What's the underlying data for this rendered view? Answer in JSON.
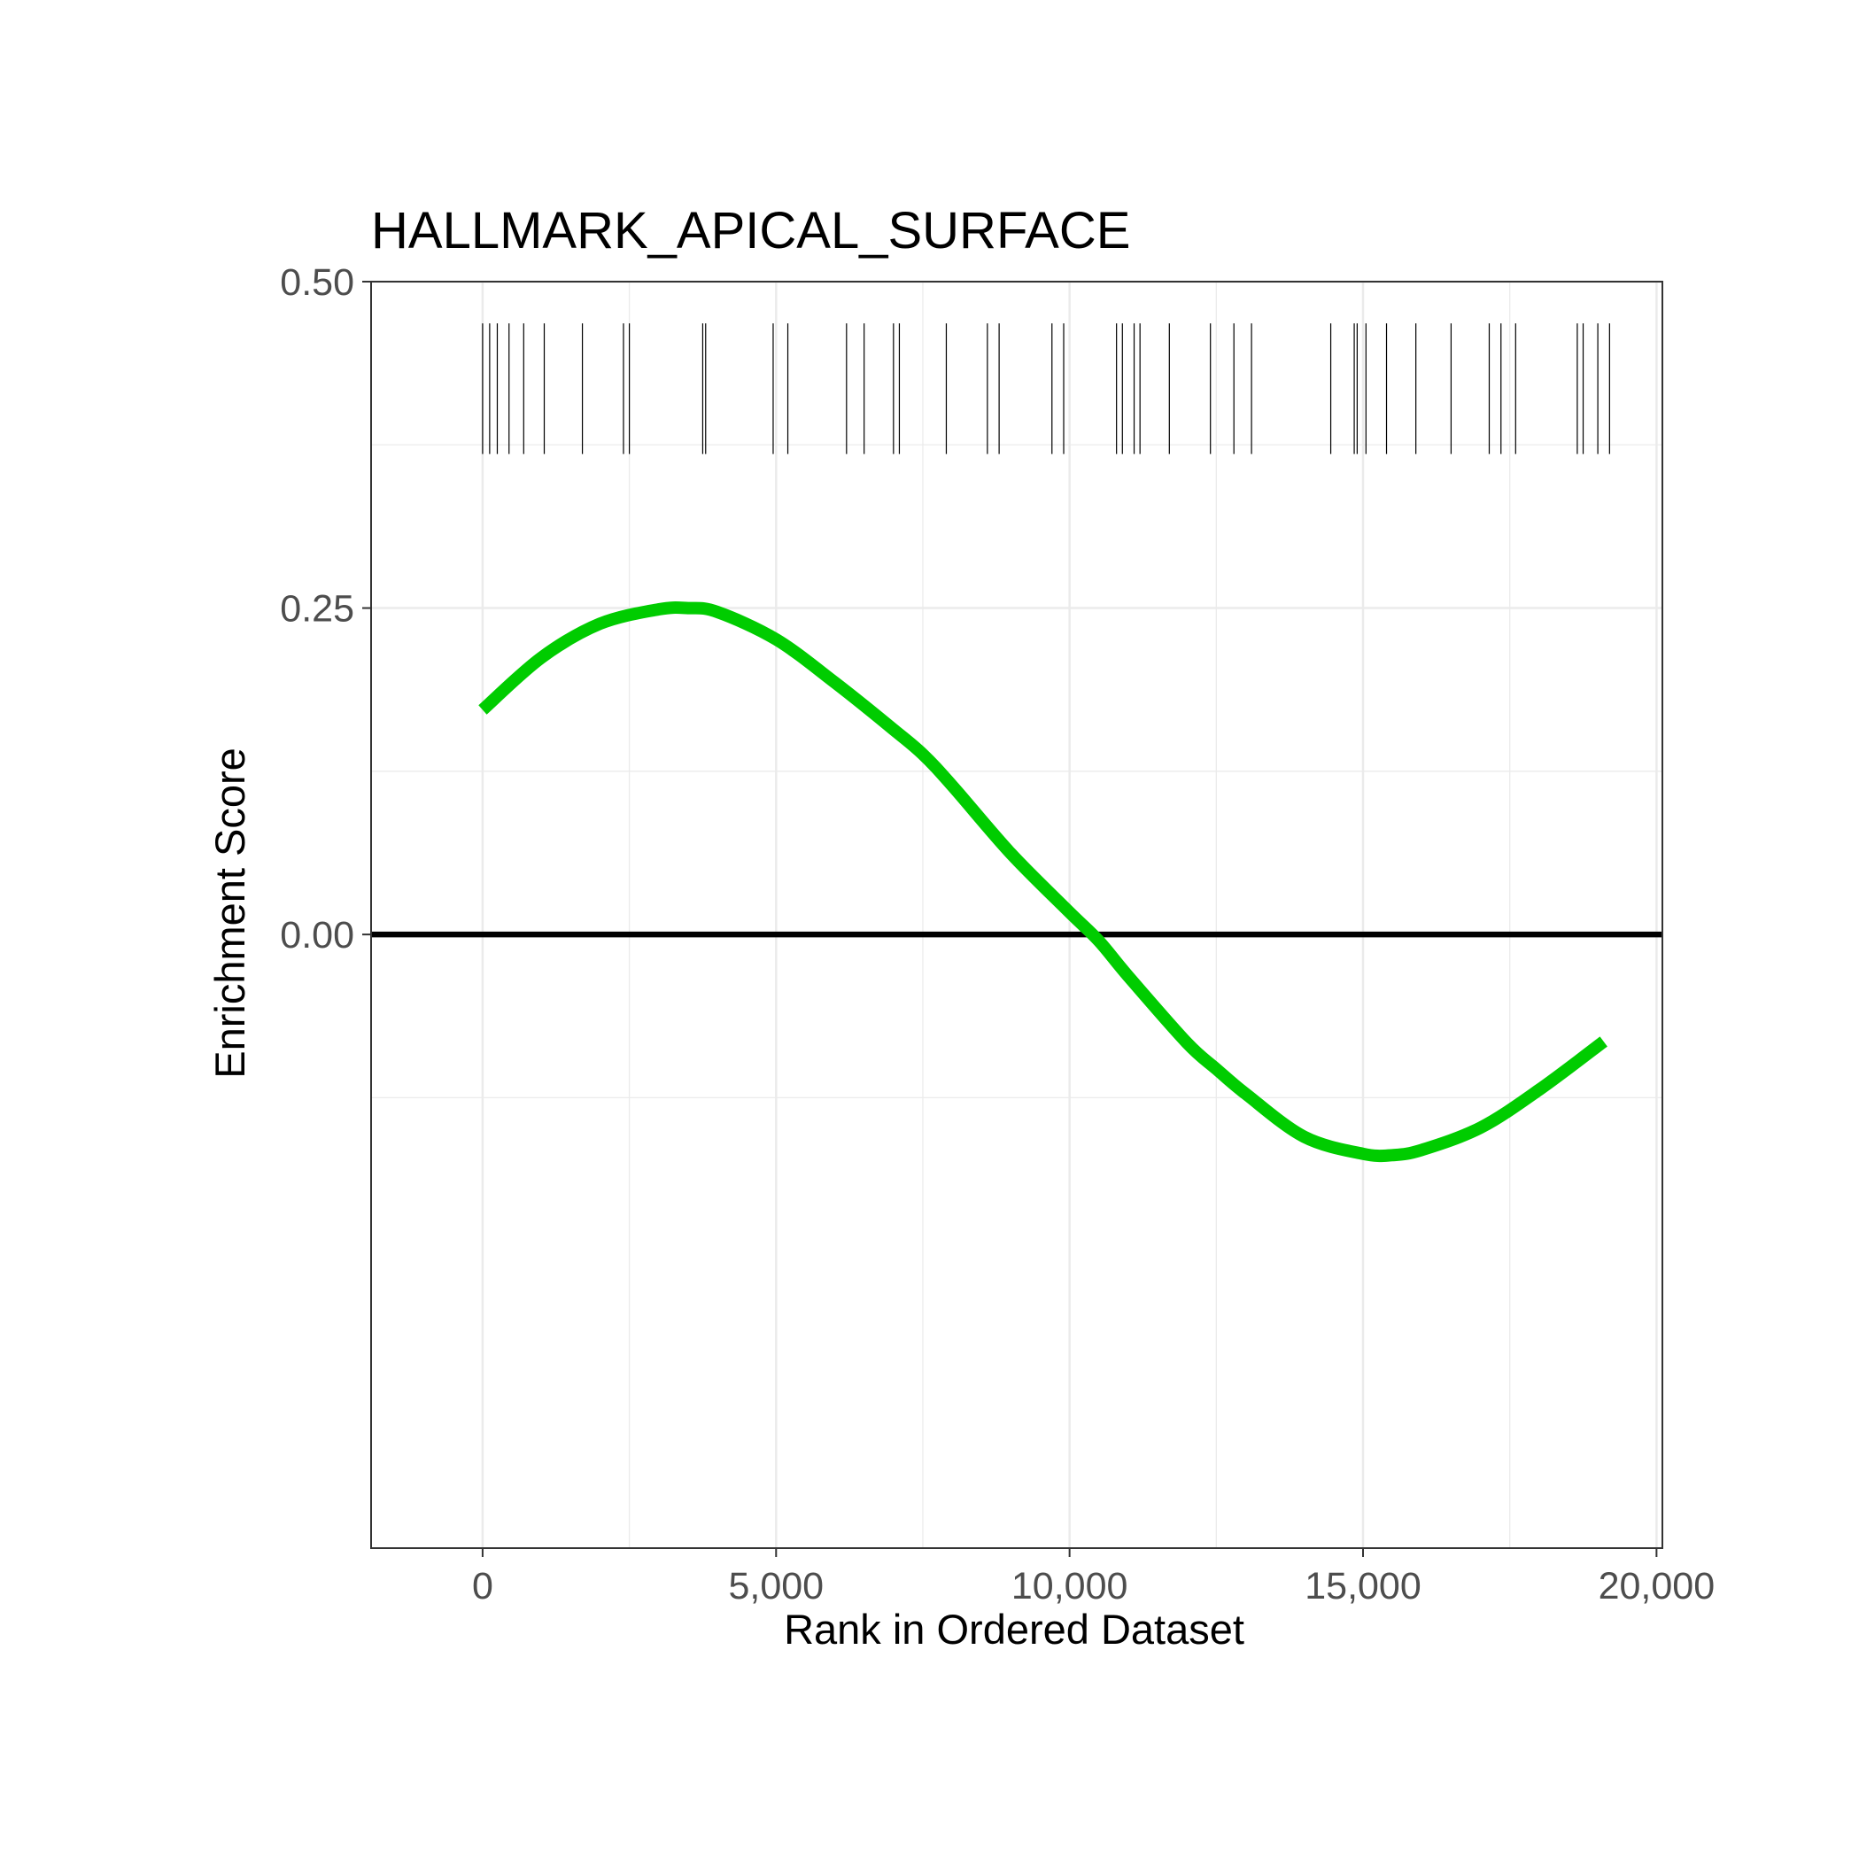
{
  "chart_data": {
    "type": "line",
    "title": "HALLMARK_APICAL_SURFACE",
    "xlabel": "Rank in Ordered Dataset",
    "ylabel": "Enrichment Score",
    "xlim": [
      -1900,
      20100
    ],
    "ylim": [
      -0.47,
      0.5
    ],
    "x_ticks": [
      0,
      5000,
      10000,
      15000,
      20000
    ],
    "x_tick_labels": [
      "0",
      "5,000",
      "10,000",
      "15,000",
      "20,000"
    ],
    "y_ticks": [
      0.0,
      0.25,
      0.5
    ],
    "y_tick_labels": [
      "0.00",
      "0.25",
      "0.50"
    ],
    "grid": true,
    "legend": "none",
    "line_color": "#00cc00",
    "zero_line_color": "#000000",
    "series": [
      {
        "x": [
          0,
          1000,
          2000,
          3000,
          3500,
          4000,
          5000,
          6000,
          7000,
          7500,
          8000,
          9000,
          10000,
          10500,
          11000,
          12000,
          12500,
          13000,
          14000,
          15000,
          15500,
          16000,
          17000,
          18000,
          19100
        ],
        "values": [
          0.172,
          0.212,
          0.238,
          0.249,
          0.25,
          0.247,
          0.226,
          0.193,
          0.157,
          0.138,
          0.114,
          0.062,
          0.017,
          -0.005,
          -0.032,
          -0.083,
          -0.103,
          -0.122,
          -0.155,
          -0.168,
          -0.169,
          -0.165,
          -0.148,
          -0.119,
          -0.082
        ]
      }
    ],
    "gene_hits": [
      0,
      120,
      250,
      450,
      700,
      1050,
      1700,
      2400,
      2500,
      3750,
      3800,
      4950,
      5200,
      6200,
      6500,
      7000,
      7100,
      7900,
      8600,
      8800,
      9700,
      9900,
      10800,
      10900,
      11100,
      11200,
      11700,
      12400,
      12800,
      13100,
      14450,
      14850,
      14900,
      15050,
      15400,
      15900,
      16500,
      17150,
      17350,
      17600,
      18650,
      18750,
      19000,
      19200
    ]
  }
}
